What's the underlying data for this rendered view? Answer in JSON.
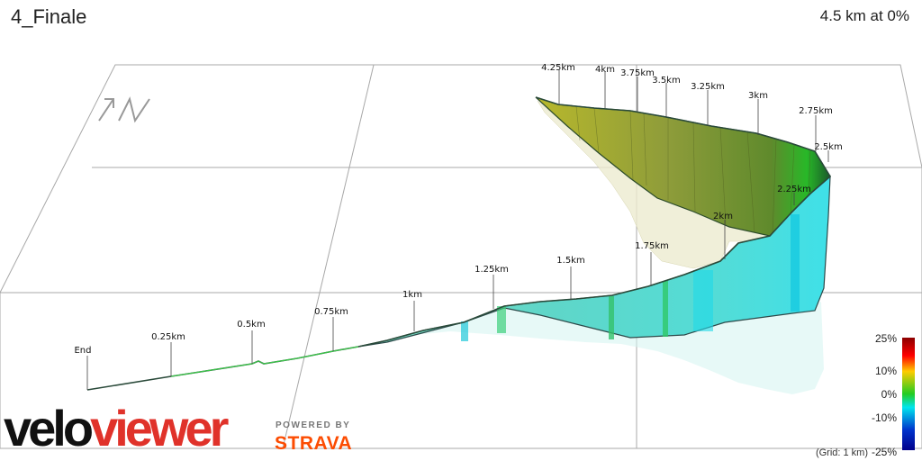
{
  "header": {
    "title": "4_Finale",
    "summary": "4.5 km at 0%"
  },
  "logos": {
    "veloviewer_part1": "velo",
    "veloviewer_part2": "viewer",
    "powered_by": "POWERED BY",
    "strava": "STRAVA"
  },
  "compass": {
    "icon": "north-arrow-icon",
    "letter": "N"
  },
  "legend": {
    "labels": [
      "25%",
      "10%",
      "0%",
      "-10%",
      "-25%"
    ],
    "grid_note": "(Grid: 1 km)",
    "colors": [
      "#8b0000",
      "#ff0000",
      "#ffcc00",
      "#22cc22",
      "#00e5ee",
      "#0033cc",
      "#00008b"
    ]
  },
  "chart_data": {
    "type": "area",
    "title": "4_Finale",
    "subtitle": "4.5 km at 0%",
    "style": "3d-profile",
    "distance_unit": "km",
    "total_distance_km": 4.5,
    "average_gradient_percent": 0,
    "gradient_color_scale": {
      "min_percent": -25,
      "max_percent": 25
    },
    "grid_spacing_km": 1,
    "marker_labels": [
      "End",
      "0.25km",
      "0.5km",
      "0.75km",
      "1km",
      "1.25km",
      "1.5km",
      "1.75km",
      "2km",
      "2.25km",
      "2.5km",
      "2.75km",
      "3km",
      "3.25km",
      "3.5km",
      "3.75km",
      "4km",
      "4.25km"
    ]
  }
}
